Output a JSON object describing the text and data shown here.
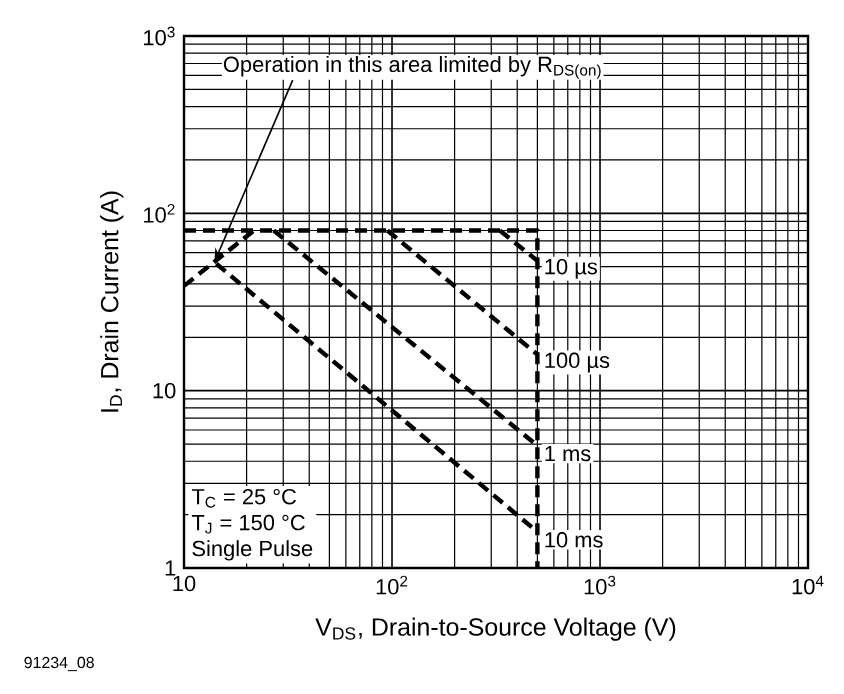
{
  "chart_data": {
    "type": "line",
    "xlabel": "V$_{DS}$, Drain-to-Source Voltage (V)",
    "ylabel": "I$_{D}$, Drain Current (A)",
    "log": "xy",
    "grid": true,
    "line_style": "dashed",
    "marker": "none",
    "xlim": [
      10,
      10000
    ],
    "ylim": [
      1,
      1000
    ],
    "xticks": [
      10,
      {
        "value": 100,
        "label": "10$^{2}$"
      },
      {
        "value": 1000,
        "label": "10$^{3}$"
      },
      {
        "value": 10000,
        "label": "10$^{4}$"
      }
    ],
    "yticks": [
      1,
      10,
      {
        "value": 100,
        "label": "10$^{2}$"
      },
      {
        "value": 1000,
        "label": "10$^{3}$"
      }
    ],
    "series": [
      {
        "color": "#000000",
        "x": [
          10,
          500,
          500
        ],
        "values": [
          80,
          80,
          1
        ]
      },
      {
        "color": "#000000",
        "x": [
          10,
          21.7
        ],
        "values": [
          39,
          80
        ]
      },
      {
        "name": "10 µs",
        "color": "#000000",
        "x": [
          330,
          500
        ],
        "values": [
          80,
          54
        ]
      },
      {
        "name": "100 µs",
        "color": "#000000",
        "x": [
          95,
          500
        ],
        "values": [
          80,
          16
        ]
      },
      {
        "name": "1 ms",
        "color": "#000000",
        "x": [
          27,
          500
        ],
        "values": [
          80,
          4.9
        ]
      },
      {
        "name": "10 ms",
        "color": "#000000",
        "x": [
          14.3,
          500
        ],
        "values": [
          52,
          1.6
        ]
      }
    ],
    "annotations": [
      {
        "text": "Operation in this area limited by R$_{DS(on)}$",
        "x": 14,
        "y": 53
      },
      "T$_{C}$ = 25 °C",
      "T$_{J}$ = 150 °C",
      "Single Pulse",
      "91234_08"
    ]
  }
}
